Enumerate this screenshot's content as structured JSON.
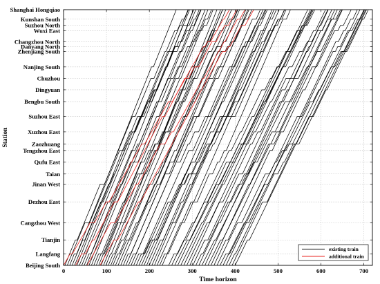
{
  "chart_data": {
    "type": "line",
    "xlabel": "Time horizon",
    "ylabel": "Station",
    "xlim": [
      0,
      720
    ],
    "x_ticks": [
      0,
      100,
      200,
      300,
      400,
      500,
      600,
      700
    ],
    "grid": true,
    "legend_position": "bottom-right",
    "stations": [
      "Shanghai Hongqiao",
      "Kunshan South",
      "Suzhou North",
      "Wuxi East",
      "Changzhou North",
      "Danyang North",
      "Zhenjiang South",
      "Nanjing South",
      "Chuzhou",
      "Dingyuan",
      "Bengbu South",
      "Suzhou East",
      "Xuzhou East",
      "Zaozhuang",
      "Tengzhou East",
      "Qufu East",
      "Taian",
      "Jinan West",
      "Dezhou East",
      "Cangzhou West",
      "Tianjin",
      "Langfang",
      "Beijing South"
    ],
    "station_positions_km": [
      1318,
      1269,
      1237,
      1210,
      1153,
      1128,
      1103,
      1023,
      964,
      905,
      844,
      767,
      688,
      626,
      592,
      533,
      471,
      419,
      327,
      219,
      131,
      59,
      0
    ],
    "series": [
      {
        "name": "existing train",
        "color": "#000000",
        "x_ranges": [
          {
            "count": 20,
            "start_first": 3,
            "start_last": 110,
            "duration": 265
          },
          {
            "count": 20,
            "start_first": 115,
            "start_last": 230,
            "duration": 280
          },
          {
            "count": 23,
            "start_first": 245,
            "start_last": 400,
            "duration": 310
          }
        ]
      },
      {
        "name": "additional train",
        "color": "#e8211c",
        "x_ranges": [
          {
            "count": 1,
            "start_first": 0,
            "start_last": 0,
            "duration": 355
          },
          {
            "count": 1,
            "start_first": 28,
            "start_last": 28,
            "duration": 345
          },
          {
            "count": 1,
            "start_first": 55,
            "start_last": 55,
            "duration": 360
          },
          {
            "count": 1,
            "start_first": 85,
            "start_last": 85,
            "duration": 345
          }
        ]
      }
    ]
  }
}
